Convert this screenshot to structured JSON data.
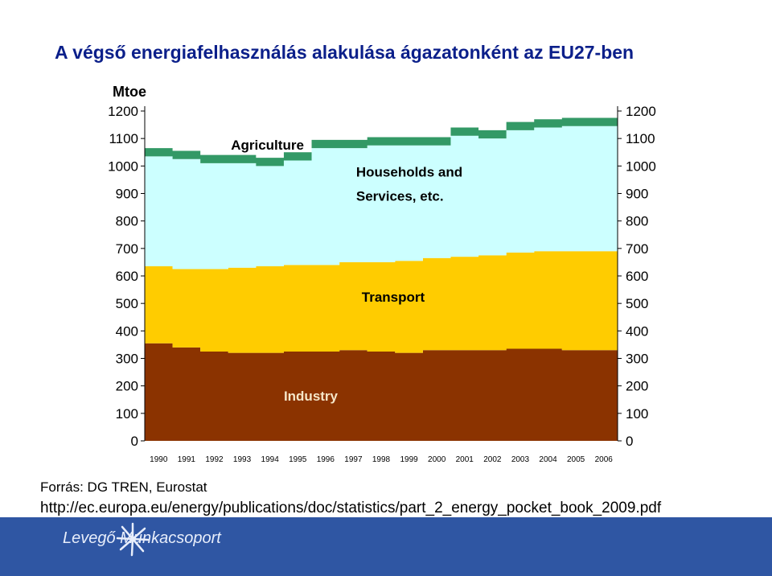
{
  "page": {
    "title": "A végső energiafelhasználás alakulása ágazatonként az EU27-ben",
    "source": "Forrás: DG TREN, Eurostat",
    "url": "http://ec.europa.eu/energy/publications/doc/statistics/part_2_energy_pocket_book_2009.pdf",
    "logo_text": "Levegő Munkacsoport",
    "logo_icon": "star-burst-icon"
  },
  "colors": {
    "industry": "#8b3300",
    "transport": "#ffcc00",
    "households": "#ccffff",
    "agriculture": "#339966",
    "title": "#0b1f8a",
    "footer": "#2f56a3"
  },
  "chart_data": {
    "type": "area",
    "stacked": true,
    "ylabel": "Mtoe",
    "ylim": [
      0,
      1200
    ],
    "yticks": [
      0,
      100,
      200,
      300,
      400,
      500,
      600,
      700,
      800,
      900,
      1000,
      1100,
      1200
    ],
    "x": [
      "1990",
      "1991",
      "1992",
      "1993",
      "1994",
      "1995",
      "1996",
      "1997",
      "1998",
      "1999",
      "2000",
      "2001",
      "2002",
      "2003",
      "2004",
      "2005",
      "2006"
    ],
    "series": [
      {
        "name": "Industry",
        "values": [
          355,
          340,
          325,
          320,
          320,
          325,
          325,
          330,
          325,
          320,
          330,
          330,
          330,
          335,
          335,
          330,
          330
        ]
      },
      {
        "name": "Transport",
        "values": [
          280,
          285,
          300,
          310,
          315,
          315,
          315,
          320,
          325,
          335,
          335,
          340,
          345,
          350,
          355,
          360,
          360
        ]
      },
      {
        "name": "Households and Services, etc.",
        "values": [
          400,
          400,
          385,
          380,
          365,
          380,
          425,
          415,
          425,
          420,
          410,
          440,
          425,
          445,
          450,
          455,
          455
        ]
      },
      {
        "name": "Agriculture",
        "values": [
          30,
          30,
          30,
          30,
          30,
          30,
          30,
          30,
          30,
          30,
          30,
          30,
          30,
          30,
          30,
          30,
          30
        ]
      }
    ],
    "grid": false,
    "right_axis": true
  }
}
